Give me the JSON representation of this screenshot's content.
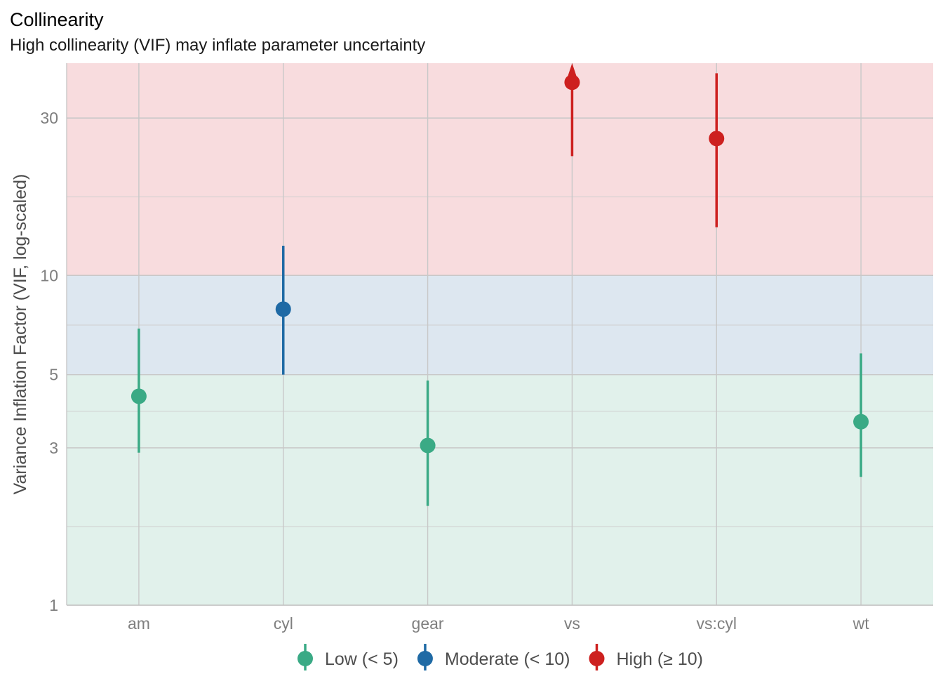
{
  "chart_data": {
    "type": "scatter",
    "title": "Collinearity",
    "subtitle": "High collinearity (VIF) may inflate parameter uncertainty",
    "xlabel": "",
    "ylabel": "Variance Inflation Factor (VIF, log-scaled)",
    "y_scale": "log",
    "ylim": [
      1,
      44
    ],
    "y_ticks": [
      1,
      3,
      5,
      10,
      30
    ],
    "y_tick_labels": [
      "1",
      "3",
      "5",
      "10",
      "30"
    ],
    "grid": true,
    "categories": [
      "am",
      "cyl",
      "gear",
      "vs",
      "vs:cyl",
      "wt"
    ],
    "bands": [
      {
        "name": "low",
        "from": 1,
        "to": 5,
        "color": "#e1f1eb"
      },
      {
        "name": "moderate",
        "from": 5,
        "to": 10,
        "color": "#dde7f0"
      },
      {
        "name": "high",
        "from": 10,
        "to": 44,
        "color": "#f8dcde"
      }
    ],
    "points": [
      {
        "term": "am",
        "vif": 4.3,
        "ci_low": 2.9,
        "ci_high": 6.9,
        "group": "low"
      },
      {
        "term": "cyl",
        "vif": 7.9,
        "ci_low": 5.0,
        "ci_high": 12.3,
        "group": "moderate"
      },
      {
        "term": "gear",
        "vif": 3.05,
        "ci_low": 2.0,
        "ci_high": 4.8,
        "group": "low"
      },
      {
        "term": "vs",
        "vif": 38.5,
        "ci_low": 23.0,
        "ci_high": 44,
        "group": "high",
        "ci_upper_truncated": true
      },
      {
        "term": "vs:cyl",
        "vif": 26.0,
        "ci_low": 14.0,
        "ci_high": 41.0,
        "group": "high"
      },
      {
        "term": "wt",
        "vif": 3.6,
        "ci_low": 2.45,
        "ci_high": 5.8,
        "group": "low"
      }
    ],
    "legend": {
      "position": "bottom",
      "items": [
        {
          "key": "low",
          "label": "Low (< 5)",
          "color": "#3aaa85"
        },
        {
          "key": "moderate",
          "label": "Moderate (< 10)",
          "color": "#1f6aa5"
        },
        {
          "key": "high",
          "label": "High (≥ 10)",
          "color": "#cd201f"
        }
      ]
    }
  }
}
